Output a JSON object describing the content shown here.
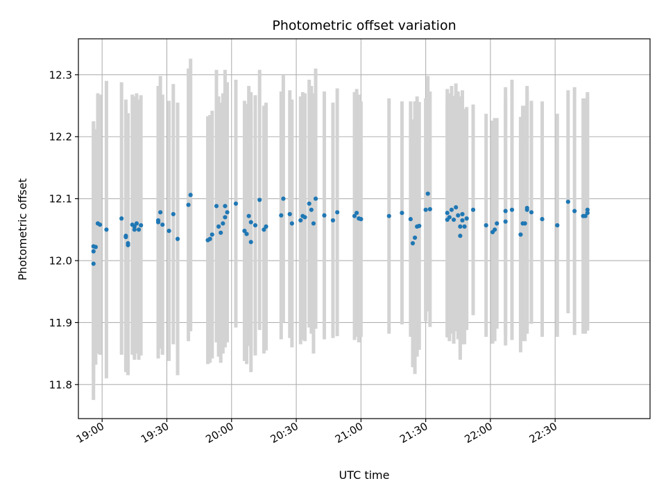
{
  "chart_data": {
    "type": "scatter",
    "title": "Photometric offset variation",
    "xlabel": "UTC time",
    "ylabel": "Photometric offset",
    "xlim": [
      "18:49",
      "23:14"
    ],
    "ylim": [
      11.745,
      12.358
    ],
    "grid": true,
    "x_ticks": [
      "19:00",
      "19:30",
      "20:00",
      "20:30",
      "21:00",
      "21:30",
      "22:00",
      "22:30"
    ],
    "y_ticks": [
      11.8,
      11.9,
      12.0,
      12.1,
      12.2,
      12.3
    ],
    "y_tick_labels": [
      "11.8",
      "11.9",
      "12.0",
      "12.1",
      "12.2",
      "12.3"
    ],
    "colors": {
      "points": "#1f77b4",
      "error_bars": "#d3d3d3",
      "grid": "#b0b0b0"
    },
    "points": [
      {
        "x": "18:56",
        "y": 12.023,
        "err": 0.2
      },
      {
        "x": "18:56",
        "y": 12.015,
        "err": 0.21
      },
      {
        "x": "18:56",
        "y": 11.995,
        "err": 0.22
      },
      {
        "x": "18:57",
        "y": 12.022,
        "err": 0.19
      },
      {
        "x": "18:58",
        "y": 12.06,
        "err": 0.21
      },
      {
        "x": "18:59",
        "y": 12.058,
        "err": 0.21
      },
      {
        "x": "19:02",
        "y": 12.05,
        "err": 0.24
      },
      {
        "x": "19:09",
        "y": 12.068,
        "err": 0.22
      },
      {
        "x": "19:11",
        "y": 12.04,
        "err": 0.22
      },
      {
        "x": "19:11",
        "y": 12.038,
        "err": 0.21
      },
      {
        "x": "19:12",
        "y": 12.025,
        "err": 0.21
      },
      {
        "x": "19:12",
        "y": 12.028,
        "err": 0.21
      },
      {
        "x": "19:14",
        "y": 12.058,
        "err": 0.21
      },
      {
        "x": "19:15",
        "y": 12.05,
        "err": 0.21
      },
      {
        "x": "19:15",
        "y": 12.055,
        "err": 0.21
      },
      {
        "x": "19:16",
        "y": 12.06,
        "err": 0.21
      },
      {
        "x": "19:17",
        "y": 12.05,
        "err": 0.21
      },
      {
        "x": "19:18",
        "y": 12.057,
        "err": 0.21
      },
      {
        "x": "19:26",
        "y": 12.062,
        "err": 0.22
      },
      {
        "x": "19:26",
        "y": 12.065,
        "err": 0.21
      },
      {
        "x": "19:27",
        "y": 12.078,
        "err": 0.22
      },
      {
        "x": "19:28",
        "y": 12.058,
        "err": 0.21
      },
      {
        "x": "19:31",
        "y": 12.048,
        "err": 0.21
      },
      {
        "x": "19:33",
        "y": 12.075,
        "err": 0.21
      },
      {
        "x": "19:35",
        "y": 12.035,
        "err": 0.22
      },
      {
        "x": "19:40",
        "y": 12.09,
        "err": 0.22
      },
      {
        "x": "19:41",
        "y": 12.106,
        "err": 0.22
      },
      {
        "x": "19:49",
        "y": 12.033,
        "err": 0.2
      },
      {
        "x": "19:50",
        "y": 12.035,
        "err": 0.2
      },
      {
        "x": "19:51",
        "y": 12.042,
        "err": 0.2
      },
      {
        "x": "19:53",
        "y": 12.088,
        "err": 0.22
      },
      {
        "x": "19:54",
        "y": 12.055,
        "err": 0.21
      },
      {
        "x": "19:55",
        "y": 12.045,
        "err": 0.21
      },
      {
        "x": "19:56",
        "y": 12.06,
        "err": 0.21
      },
      {
        "x": "19:57",
        "y": 12.07,
        "err": 0.21
      },
      {
        "x": "19:57",
        "y": 12.088,
        "err": 0.22
      },
      {
        "x": "19:58",
        "y": 12.078,
        "err": 0.21
      },
      {
        "x": "20:02",
        "y": 12.092,
        "err": 0.2
      },
      {
        "x": "20:06",
        "y": 12.048,
        "err": 0.21
      },
      {
        "x": "20:07",
        "y": 12.043,
        "err": 0.21
      },
      {
        "x": "20:08",
        "y": 12.072,
        "err": 0.21
      },
      {
        "x": "20:09",
        "y": 12.062,
        "err": 0.21
      },
      {
        "x": "20:09",
        "y": 12.03,
        "err": 0.21
      },
      {
        "x": "20:11",
        "y": 12.057,
        "err": 0.21
      },
      {
        "x": "20:13",
        "y": 12.098,
        "err": 0.21
      },
      {
        "x": "20:15",
        "y": 12.05,
        "err": 0.2
      },
      {
        "x": "20:16",
        "y": 12.055,
        "err": 0.2
      },
      {
        "x": "20:23",
        "y": 12.073,
        "err": 0.2
      },
      {
        "x": "20:24",
        "y": 12.1,
        "err": 0.2
      },
      {
        "x": "20:27",
        "y": 12.075,
        "err": 0.2
      },
      {
        "x": "20:28",
        "y": 12.06,
        "err": 0.2
      },
      {
        "x": "20:32",
        "y": 12.065,
        "err": 0.2
      },
      {
        "x": "20:33",
        "y": 12.072,
        "err": 0.2
      },
      {
        "x": "20:34",
        "y": 12.07,
        "err": 0.2
      },
      {
        "x": "20:36",
        "y": 12.092,
        "err": 0.2
      },
      {
        "x": "20:37",
        "y": 12.082,
        "err": 0.2
      },
      {
        "x": "20:38",
        "y": 12.06,
        "err": 0.21
      },
      {
        "x": "20:39",
        "y": 12.1,
        "err": 0.21
      },
      {
        "x": "20:43",
        "y": 12.073,
        "err": 0.2
      },
      {
        "x": "20:47",
        "y": 12.065,
        "err": 0.19
      },
      {
        "x": "20:49",
        "y": 12.078,
        "err": 0.2
      },
      {
        "x": "20:57",
        "y": 12.072,
        "err": 0.2
      },
      {
        "x": "20:58",
        "y": 12.077,
        "err": 0.2
      },
      {
        "x": "20:59",
        "y": 12.068,
        "err": 0.2
      },
      {
        "x": "21:00",
        "y": 12.067,
        "err": 0.19
      },
      {
        "x": "21:13",
        "y": 12.072,
        "err": 0.19
      },
      {
        "x": "21:19",
        "y": 12.077,
        "err": 0.18
      },
      {
        "x": "21:23",
        "y": 12.067,
        "err": 0.19
      },
      {
        "x": "21:24",
        "y": 12.028,
        "err": 0.2
      },
      {
        "x": "21:25",
        "y": 12.037,
        "err": 0.22
      },
      {
        "x": "21:26",
        "y": 12.055,
        "err": 0.21
      },
      {
        "x": "21:27",
        "y": 12.056,
        "err": 0.2
      },
      {
        "x": "21:30",
        "y": 12.082,
        "err": 0.18
      },
      {
        "x": "21:31",
        "y": 12.108,
        "err": 0.19
      },
      {
        "x": "21:32",
        "y": 12.083,
        "err": 0.19
      },
      {
        "x": "21:40",
        "y": 12.066,
        "err": 0.19
      },
      {
        "x": "21:40",
        "y": 12.077,
        "err": 0.2
      },
      {
        "x": "21:41",
        "y": 12.07,
        "err": 0.2
      },
      {
        "x": "21:42",
        "y": 12.082,
        "err": 0.2
      },
      {
        "x": "21:43",
        "y": 12.066,
        "err": 0.2
      },
      {
        "x": "21:44",
        "y": 12.086,
        "err": 0.2
      },
      {
        "x": "21:45",
        "y": 12.073,
        "err": 0.2
      },
      {
        "x": "21:46",
        "y": 12.04,
        "err": 0.2
      },
      {
        "x": "21:46",
        "y": 12.055,
        "err": 0.21
      },
      {
        "x": "21:47",
        "y": 12.065,
        "err": 0.2
      },
      {
        "x": "21:47",
        "y": 12.075,
        "err": 0.2
      },
      {
        "x": "21:48",
        "y": 12.055,
        "err": 0.19
      },
      {
        "x": "21:49",
        "y": 12.068,
        "err": 0.18
      },
      {
        "x": "21:52",
        "y": 12.082,
        "err": 0.17
      },
      {
        "x": "21:58",
        "y": 12.057,
        "err": 0.18
      },
      {
        "x": "22:01",
        "y": 12.046,
        "err": 0.18
      },
      {
        "x": "22:02",
        "y": 12.05,
        "err": 0.18
      },
      {
        "x": "22:03",
        "y": 12.06,
        "err": 0.17
      },
      {
        "x": "22:07",
        "y": 12.063,
        "err": 0.2
      },
      {
        "x": "22:07",
        "y": 12.08,
        "err": 0.2
      },
      {
        "x": "22:10",
        "y": 12.082,
        "err": 0.21
      },
      {
        "x": "22:14",
        "y": 12.042,
        "err": 0.19
      },
      {
        "x": "22:15",
        "y": 12.06,
        "err": 0.19
      },
      {
        "x": "22:16",
        "y": 12.06,
        "err": 0.19
      },
      {
        "x": "22:17",
        "y": 12.082,
        "err": 0.2
      },
      {
        "x": "22:17",
        "y": 12.085,
        "err": 0.19
      },
      {
        "x": "22:19",
        "y": 12.078,
        "err": 0.18
      },
      {
        "x": "22:24",
        "y": 12.067,
        "err": 0.19
      },
      {
        "x": "22:31",
        "y": 12.057,
        "err": 0.18
      },
      {
        "x": "22:36",
        "y": 12.095,
        "err": 0.18
      },
      {
        "x": "22:39",
        "y": 12.08,
        "err": 0.2
      },
      {
        "x": "22:43",
        "y": 12.072,
        "err": 0.19
      },
      {
        "x": "22:44",
        "y": 12.072,
        "err": 0.19
      },
      {
        "x": "22:45",
        "y": 12.082,
        "err": 0.19
      },
      {
        "x": "22:45",
        "y": 12.077,
        "err": 0.19
      }
    ]
  }
}
